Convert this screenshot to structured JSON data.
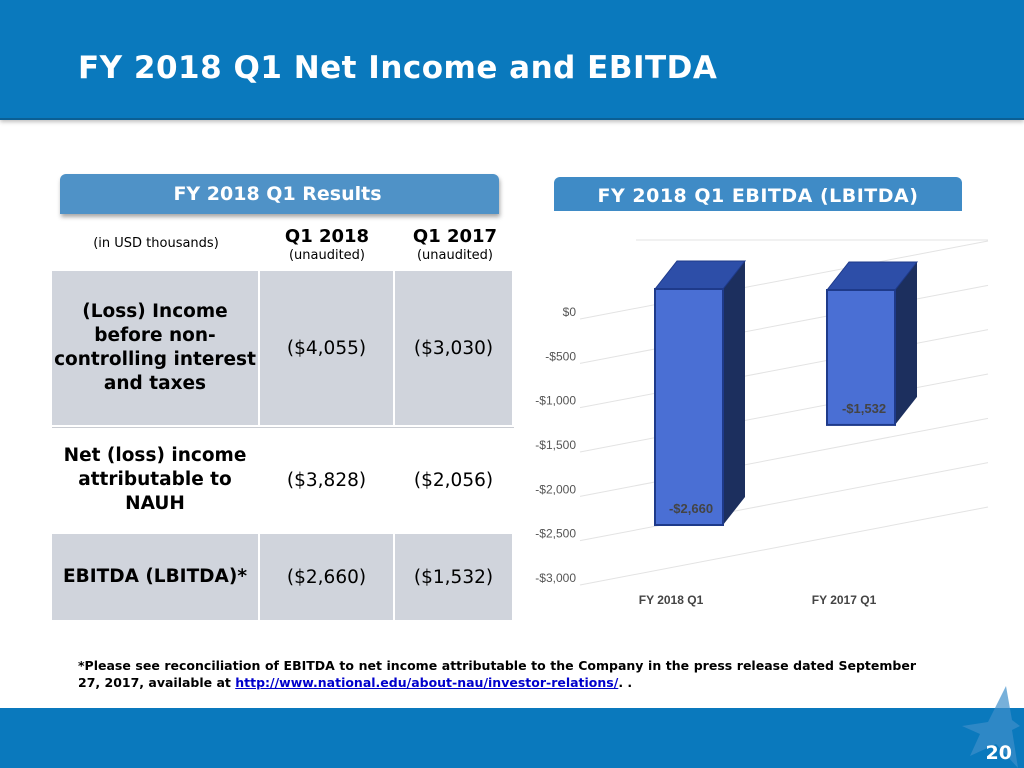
{
  "title": "FY 2018 Q1 Net Income and EBITDA",
  "results_panel": {
    "tab_label": "FY 2018 Q1 Results",
    "units_label": "(in USD thousands)",
    "columns": [
      {
        "label": "Q1 2018",
        "sub": "(unaudited)"
      },
      {
        "label": "Q1 2017",
        "sub": "(unaudited)"
      }
    ],
    "rows": [
      {
        "label": "(Loss) Income before non-controlling interest and taxes",
        "q1_2018": "($4,055)",
        "q1_2017": "($3,030)"
      },
      {
        "label": "Net (loss) income attributable to NAUH",
        "q1_2018": "($3,828)",
        "q1_2017": "($2,056)"
      },
      {
        "label": "EBITDA (LBITDA)*",
        "q1_2018": "($2,660)",
        "q1_2017": "($1,532)"
      }
    ]
  },
  "chart_panel": {
    "tab_label": "FY 2018 Q1 EBITDA (LBITDA)"
  },
  "chart_data": {
    "type": "bar",
    "title": "FY 2018 Q1 EBITDA (LBITDA)",
    "categories": [
      "FY 2018 Q1",
      "FY 2017 Q1"
    ],
    "values": [
      -2660,
      -1532
    ],
    "data_labels": [
      "-$2,660",
      "-$1,532"
    ],
    "y_ticks": [
      "$0",
      "-$500",
      "-$1,000",
      "-$1,500",
      "-$2,000",
      "-$2,500",
      "-$3,000"
    ],
    "ylim": [
      -3000,
      0
    ],
    "grid": true,
    "bar_color": "#4a6fd4",
    "style": "3d"
  },
  "footnote": {
    "text": "*Please see reconciliation of EBITDA to net income attributable to the Company in the press release dated September 27, 2017, available at ",
    "link": "http://www.national.edu/about-nau/investor-relations/",
    "suffix": ". ."
  },
  "page_number": "20",
  "colors": {
    "header": "#0a79bd",
    "table_shade": "#d0d4dc",
    "tab": "#4f92c7"
  }
}
